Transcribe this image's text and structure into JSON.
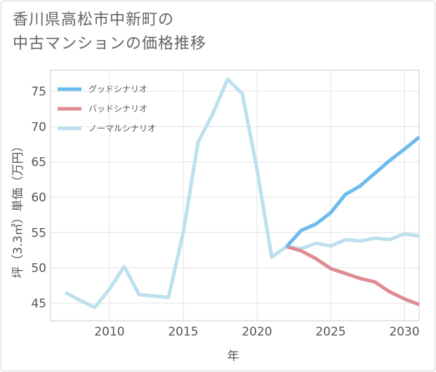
{
  "header": {
    "title_line1": "香川県高松市中新町の",
    "title_line2": "中古マンションの価格推移"
  },
  "chart_data": {
    "type": "line",
    "xlabel": "年",
    "ylabel": "坪（3.3㎡）単価（万円）",
    "xlim": [
      2006,
      2031
    ],
    "ylim": [
      42.5,
      78
    ],
    "xticks": [
      2010,
      2015,
      2020,
      2025,
      2030
    ],
    "yticks": [
      45,
      50,
      55,
      60,
      65,
      70,
      75
    ],
    "grid": true,
    "legend_position": "top-left",
    "series": [
      {
        "name": "グッドシナリオ",
        "color": "#6dbbee",
        "x": [
          2022,
          2023,
          2024,
          2025,
          2026,
          2027,
          2028,
          2029,
          2030,
          2031
        ],
        "y": [
          53.0,
          55.3,
          56.2,
          57.8,
          60.4,
          61.6,
          63.4,
          65.2,
          66.8,
          68.5
        ]
      },
      {
        "name": "バッドシナリオ",
        "color": "#e08b94",
        "x": [
          2022,
          2023,
          2024,
          2025,
          2026,
          2027,
          2028,
          2029,
          2030,
          2031
        ],
        "y": [
          53.0,
          52.4,
          51.3,
          49.9,
          49.2,
          48.5,
          48.0,
          46.6,
          45.6,
          44.8
        ]
      },
      {
        "name": "ノーマルシナリオ",
        "color": "#bde0ee",
        "x": [
          2007,
          2008,
          2009,
          2010,
          2011,
          2012,
          2013,
          2014,
          2015,
          2016,
          2017,
          2018,
          2019,
          2020,
          2021,
          2022,
          2023,
          2024,
          2025,
          2026,
          2027,
          2028,
          2029,
          2030,
          2031
        ],
        "y": [
          46.5,
          45.4,
          44.4,
          47.0,
          50.2,
          46.2,
          46.0,
          45.8,
          55.0,
          67.8,
          71.8,
          76.7,
          74.7,
          64.0,
          51.5,
          53.0,
          52.7,
          53.5,
          53.1,
          54.0,
          53.8,
          54.2,
          54.0,
          54.8,
          54.5
        ]
      }
    ]
  }
}
